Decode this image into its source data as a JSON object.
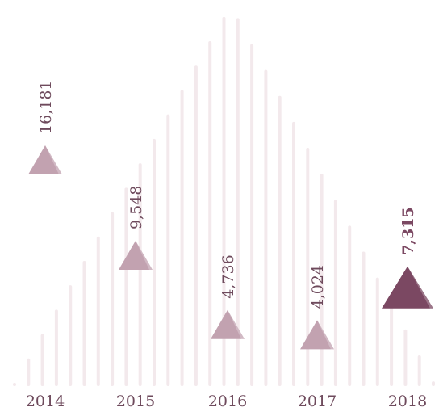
{
  "chart_data": {
    "type": "triangle-marker",
    "categories": [
      "2014",
      "2015",
      "2016",
      "2017",
      "2018"
    ],
    "values": [
      16181,
      9548,
      4736,
      4024,
      7315
    ],
    "value_labels": [
      "16,181",
      "9,548",
      "4,736",
      "4,024",
      "7,315"
    ],
    "color": "#c2a2b0",
    "highlight": "2018",
    "highlight_color": "#7b4862",
    "ylim": [
      0,
      20000
    ]
  }
}
